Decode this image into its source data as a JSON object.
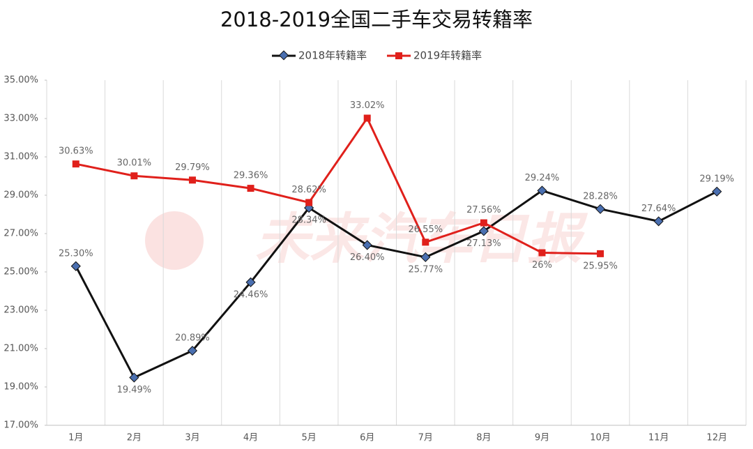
{
  "chart_data": {
    "type": "line",
    "title": "2018-2019全国二手车交易转籍率",
    "watermark": "未来汽车日报",
    "categories": [
      "1月",
      "2月",
      "3月",
      "4月",
      "5月",
      "6月",
      "7月",
      "8月",
      "9月",
      "10月",
      "11月",
      "12月"
    ],
    "series": [
      {
        "name": "2018年转籍率",
        "color": "#111111",
        "marker_color": "#4a6fb0",
        "values": [
          25.3,
          19.49,
          20.89,
          24.46,
          28.34,
          26.4,
          25.77,
          27.13,
          29.24,
          28.28,
          27.64,
          29.19
        ],
        "value_labels": [
          "25.30%",
          "19.49%",
          "20.89%",
          "24.46%",
          "28.34%",
          "26.40%",
          "25.77%",
          "27.13%",
          "29.24%",
          "28.28%",
          "27.64%",
          "29.19%"
        ]
      },
      {
        "name": "2019年转籍率",
        "color": "#e0201b",
        "marker_color": "#e0201b",
        "values": [
          30.63,
          30.01,
          29.79,
          29.36,
          28.62,
          33.02,
          26.55,
          27.56,
          26,
          25.95,
          null,
          null
        ],
        "value_labels": [
          "30.63%",
          "30.01%",
          "29.79%",
          "29.36%",
          "28.62%",
          "33.02%",
          "26.55%",
          "27.56%",
          "26%",
          "25.95%",
          null,
          null
        ]
      }
    ],
    "ylim": [
      17,
      35
    ],
    "yticks": [
      {
        "value": 17,
        "label": "17.00%"
      },
      {
        "value": 19,
        "label": "19.00%"
      },
      {
        "value": 21,
        "label": "21.00%"
      },
      {
        "value": 23,
        "label": "23.00%"
      },
      {
        "value": 25,
        "label": "25.00%"
      },
      {
        "value": 27,
        "label": "27.00%"
      },
      {
        "value": 29,
        "label": "29.00%"
      },
      {
        "value": 31,
        "label": "31.00%"
      },
      {
        "value": 33,
        "label": "33.00%"
      },
      {
        "value": 35,
        "label": "35.00%"
      }
    ],
    "legend": "top"
  }
}
